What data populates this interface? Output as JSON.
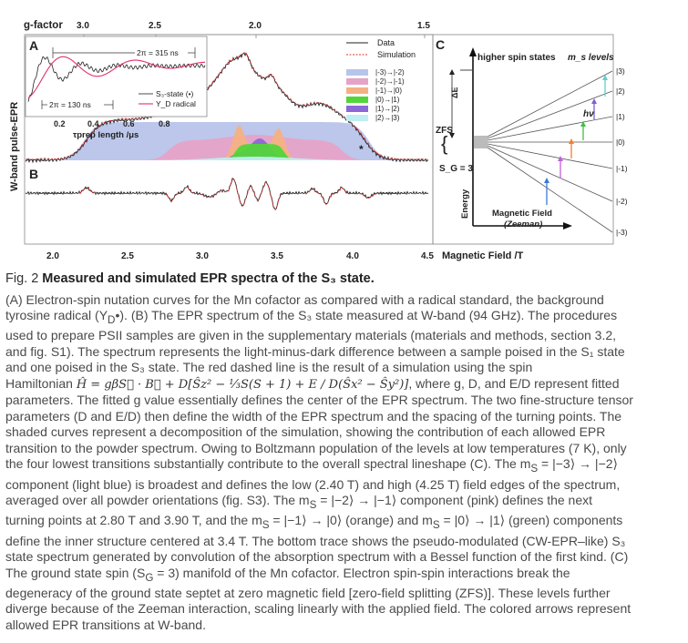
{
  "figure": {
    "top_axis_title": "g-factor",
    "top_ticks": [
      "3.0",
      "2.5",
      "2.0",
      "1.5"
    ],
    "ylabel": "W-band pulse-EPR",
    "bottom_ticks": [
      "2.0",
      "2.5",
      "3.0",
      "3.5",
      "4.0",
      "4.5"
    ],
    "xlabel": "Magnetic Field /T",
    "star": "*",
    "panel_a": {
      "label": "A",
      "period_long": "2π = 315 ns",
      "period_short": "2π = 130 ns",
      "legend": [
        "S₃-state (•)",
        "Y_D radical"
      ],
      "x_ticks": [
        "0.2",
        "0.4",
        "0.6",
        "0.8"
      ],
      "xlabel": "τprep length /μs"
    },
    "panel_b": {
      "label": "B"
    },
    "legend": {
      "data": "Data",
      "simulation": "Simulation",
      "transitions": [
        {
          "label": "|-3)→|-2)",
          "color": "#b8c4ea"
        },
        {
          "label": "|-2)→|-1)",
          "color": "#e6a3c9"
        },
        {
          "label": "|-1)→|0)",
          "color": "#f4b183"
        },
        {
          "label": "|0)→|1)",
          "color": "#53d53a"
        },
        {
          "label": "|1)→|2)",
          "color": "#8c67d6"
        },
        {
          "label": "|2)→|3)",
          "color": "#bfeff2"
        }
      ]
    },
    "panel_c": {
      "label": "C",
      "higher": "higher spin states",
      "ms_levels": "m_s levels",
      "delta_e": "ΔE",
      "zfs": "ZFS",
      "sg": "S_G = 3",
      "energy": "Energy",
      "hv": "hν",
      "mag_field": "Magnetic Field",
      "zeeman": "(Zeeman)",
      "levels": [
        "|3)",
        "|2)",
        "|1)",
        "|0)",
        "|-1)",
        "|-2)",
        "|-3)"
      ],
      "arrow_colors": [
        "#3c78d8",
        "#c060e0",
        "#f08030",
        "#40c040",
        "#8060d0",
        "#60d0d0"
      ]
    }
  },
  "caption": {
    "fig_no": "Fig. 2",
    "title": "Measured and simulated EPR spectra of the S₃ state.",
    "para1": "(A) Electron-spin nutation curves for the Mn cofactor as compared with a radical standard, the background tyrosine radical (Y",
    "para2": "). (B) The EPR spectrum of the S₃ state measured at W-band (94 GHz). The procedures used to prepare PSII samples are given in the supplementary materials (materials and methods, section 3.2, and fig. S1). The spectrum represents the light-minus-dark difference between a sample poised in the S₁ state and one poised in the S₃ state. The red dashed line is the result of a simulation using the spin",
    "hamiltonian_word": "Hamiltonian",
    "equation": "Ĥ = gβS⃗ · B⃗ + D[Ŝz² − ⅓S(S + 1) + E / D(Ŝx² − Ŝy²)]",
    "para3": ", where g, D, and E/D represent fitted parameters. The fitted g value essentially defines the center of the EPR spectrum. The two fine-structure tensor parameters (D and E/D) then define the width of the EPR spectrum and the spacing of the turning points. The shaded curves represent a decomposition of the simulation, showing the contribution of each allowed EPR transition to the powder spectrum. Owing to Boltzmann population of the levels at low temperatures (7 K), only the four lowest transitions substantially contribute to the overall spectral lineshape (C). The m",
    "para4": " = |−3⟩ → |−2⟩ component (light blue) is broadest and defines the low (2.40 T) and high (4.25 T) field edges of the spectrum, averaged over all powder orientations (fig. S3). The m",
    "para5": " = |−2⟩ → |−1⟩ component (pink) defines the next turning points at 2.80 T and 3.90 T, and the m",
    "para6": " = |−1⟩ → |0⟩ (orange) and m",
    "para7": " = |0⟩ → |1⟩ (green) components define the inner structure centered at 3.4 T. The bottom trace shows the pseudo-modulated (CW-EPR–like) S₃ state spectrum generated by convolution of the absorption spectrum with a Bessel function of the first kind. (C) The ground state spin (S",
    "para8": " = 3) manifold of the Mn cofactor. Electron spin-spin interactions break the degeneracy of the ground state septet at zero magnetic field [zero-field splitting (ZFS)]. These levels further diverge because of the Zeeman interaction, scaling linearly with the applied field. The colored arrows represent allowed EPR transitions at W-band."
  }
}
